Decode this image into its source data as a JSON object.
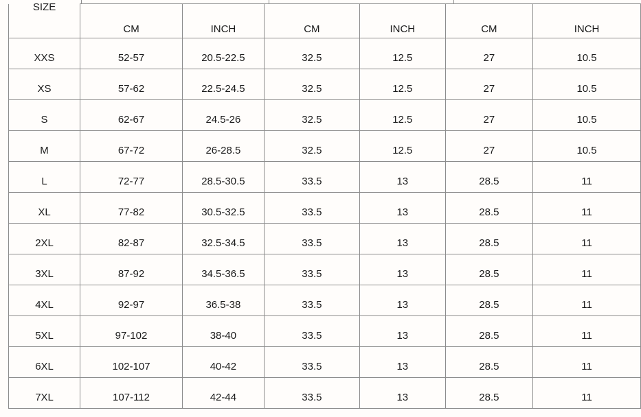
{
  "table": {
    "size_header": "SIZE",
    "unit_headers": [
      "CM",
      "INCH",
      "CM",
      "INCH",
      "CM",
      "INCH"
    ],
    "rows": [
      [
        "XXS",
        "52-57",
        "20.5-22.5",
        "32.5",
        "12.5",
        "27",
        "10.5"
      ],
      [
        "XS",
        "57-62",
        "22.5-24.5",
        "32.5",
        "12.5",
        "27",
        "10.5"
      ],
      [
        "S",
        "62-67",
        "24.5-26",
        "32.5",
        "12.5",
        "27",
        "10.5"
      ],
      [
        "M",
        "67-72",
        "26-28.5",
        "32.5",
        "12.5",
        "27",
        "10.5"
      ],
      [
        "L",
        "72-77",
        "28.5-30.5",
        "33.5",
        "13",
        "28.5",
        "11"
      ],
      [
        "XL",
        "77-82",
        "30.5-32.5",
        "33.5",
        "13",
        "28.5",
        "11"
      ],
      [
        "2XL",
        "82-87",
        "32.5-34.5",
        "33.5",
        "13",
        "28.5",
        "11"
      ],
      [
        "3XL",
        "87-92",
        "34.5-36.5",
        "33.5",
        "13",
        "28.5",
        "11"
      ],
      [
        "4XL",
        "92-97",
        "36.5-38",
        "33.5",
        "13",
        "28.5",
        "11"
      ],
      [
        "5XL",
        "97-102",
        "38-40",
        "33.5",
        "13",
        "28.5",
        "11"
      ],
      [
        "6XL",
        "102-107",
        "40-42",
        "33.5",
        "13",
        "28.5",
        "11"
      ],
      [
        "7XL",
        "107-112",
        "42-44",
        "33.5",
        "13",
        "28.5",
        "11"
      ]
    ]
  }
}
